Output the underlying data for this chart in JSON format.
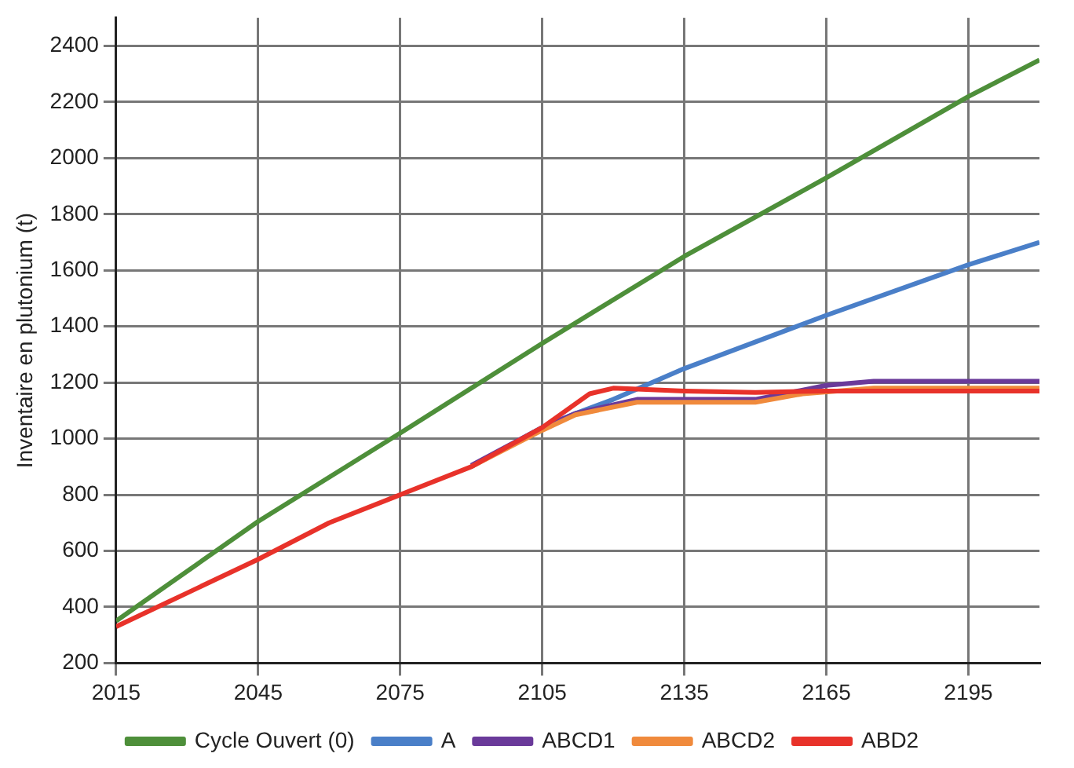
{
  "chart_data": {
    "type": "line",
    "ylabel": "Inventaire en plutonium (t)",
    "xlim": [
      2015,
      2210
    ],
    "xticks": [
      2015,
      2045,
      2075,
      2105,
      2135,
      2165,
      2195
    ],
    "ylim": [
      200,
      2500
    ],
    "yticks": [
      200,
      400,
      600,
      800,
      1000,
      1200,
      1400,
      1600,
      1800,
      2000,
      2200,
      2400
    ],
    "grid": true,
    "legend": "bottom",
    "marker": "none",
    "series": [
      {
        "name": "Cycle Ouvert (0)",
        "color": "#4e8f3a",
        "x": [
          2015,
          2045,
          2075,
          2105,
          2135,
          2165,
          2195,
          2210
        ],
        "values": [
          350,
          705,
          1020,
          1340,
          1650,
          1930,
          2220,
          2350
        ]
      },
      {
        "name": "A",
        "color": "#4a7fc8",
        "x": [
          2090,
          2105,
          2112,
          2120,
          2135,
          2165,
          2195,
          2210
        ],
        "values": [
          900,
          1040,
          1090,
          1140,
          1250,
          1440,
          1620,
          1700
        ]
      },
      {
        "name": "ABCD1",
        "color": "#6a3a9a",
        "x": [
          2090,
          2105,
          2112,
          2125,
          2150,
          2165,
          2175,
          2210
        ],
        "values": [
          905,
          1040,
          1090,
          1140,
          1140,
          1190,
          1205,
          1205
        ]
      },
      {
        "name": "ABCD2",
        "color": "#f08a3c",
        "x": [
          2090,
          2105,
          2112,
          2125,
          2150,
          2160,
          2175,
          2210
        ],
        "values": [
          900,
          1030,
          1085,
          1130,
          1130,
          1160,
          1180,
          1180
        ]
      },
      {
        "name": "ABD2",
        "color": "#e8322a",
        "x": [
          2015,
          2030,
          2045,
          2060,
          2075,
          2090,
          2105,
          2115,
          2120,
          2135,
          2150,
          2165,
          2210
        ],
        "values": [
          330,
          450,
          570,
          700,
          800,
          900,
          1040,
          1160,
          1180,
          1170,
          1165,
          1170,
          1170
        ]
      }
    ]
  }
}
